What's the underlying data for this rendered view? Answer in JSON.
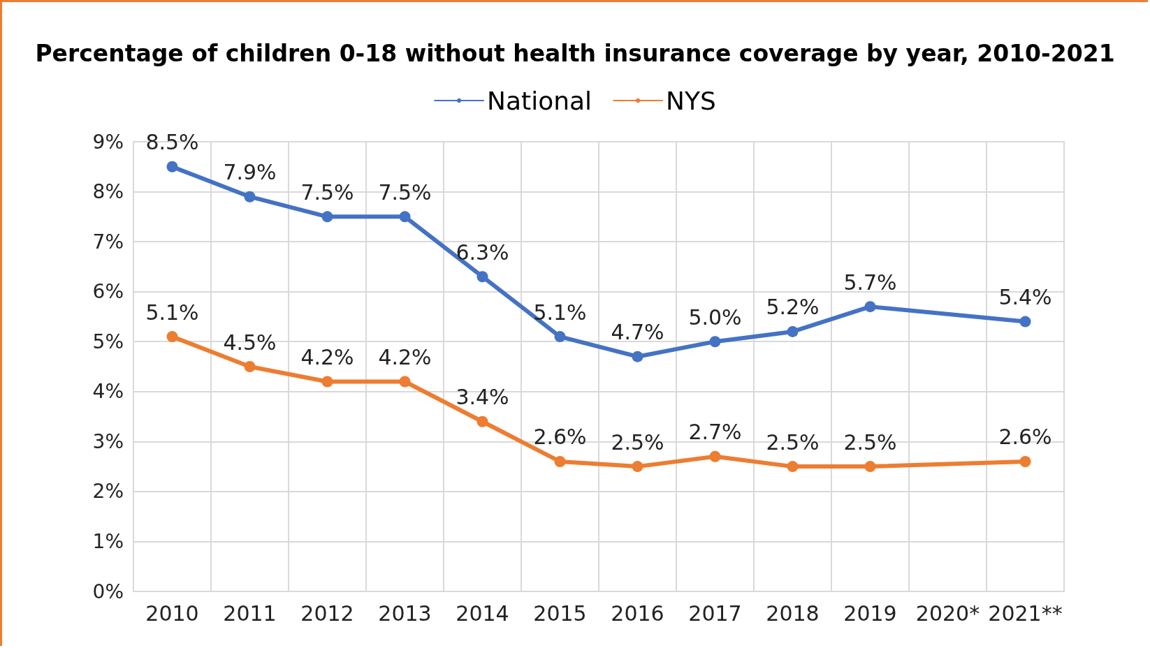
{
  "chart_data": {
    "type": "line",
    "title": "Percentage of children 0-18 without health insurance coverage by year, 2010-2021",
    "categories": [
      "2010",
      "2011",
      "2012",
      "2013",
      "2014",
      "2015",
      "2016",
      "2017",
      "2018",
      "2019",
      "2020*",
      "2021**"
    ],
    "series": [
      {
        "name": "National",
        "color": "#4472c4",
        "values": [
          8.5,
          7.9,
          7.5,
          7.5,
          6.3,
          5.1,
          4.7,
          5.0,
          5.2,
          5.7,
          null,
          5.4
        ],
        "value_labels": [
          "8.5%",
          "7.9%",
          "7.5%",
          "7.5%",
          "6.3%",
          "5.1%",
          "4.7%",
          "5.0%",
          "5.2%",
          "5.7%",
          null,
          "5.4%"
        ]
      },
      {
        "name": "NYS",
        "color": "#ed7d31",
        "values": [
          5.1,
          4.5,
          4.2,
          4.2,
          3.4,
          2.6,
          2.5,
          2.7,
          2.5,
          2.5,
          null,
          2.6
        ],
        "value_labels": [
          "5.1%",
          "4.5%",
          "4.2%",
          "4.2%",
          "3.4%",
          "2.6%",
          "2.5%",
          "2.7%",
          "2.5%",
          "2.5%",
          null,
          "2.6%"
        ]
      }
    ],
    "ylim": [
      0,
      9
    ],
    "yticks": [
      {
        "value": 0,
        "label": "0%"
      },
      {
        "value": 1,
        "label": "1%"
      },
      {
        "value": 2,
        "label": "2%"
      },
      {
        "value": 3,
        "label": "3%"
      },
      {
        "value": 4,
        "label": "4%"
      },
      {
        "value": 5,
        "label": "5%"
      },
      {
        "value": 6,
        "label": "6%"
      },
      {
        "value": 7,
        "label": "7%"
      },
      {
        "value": 8,
        "label": "8%"
      },
      {
        "value": 9,
        "label": "9%"
      }
    ],
    "grid": true,
    "legend": "top",
    "marker": "circle",
    "line_style": "solid"
  }
}
